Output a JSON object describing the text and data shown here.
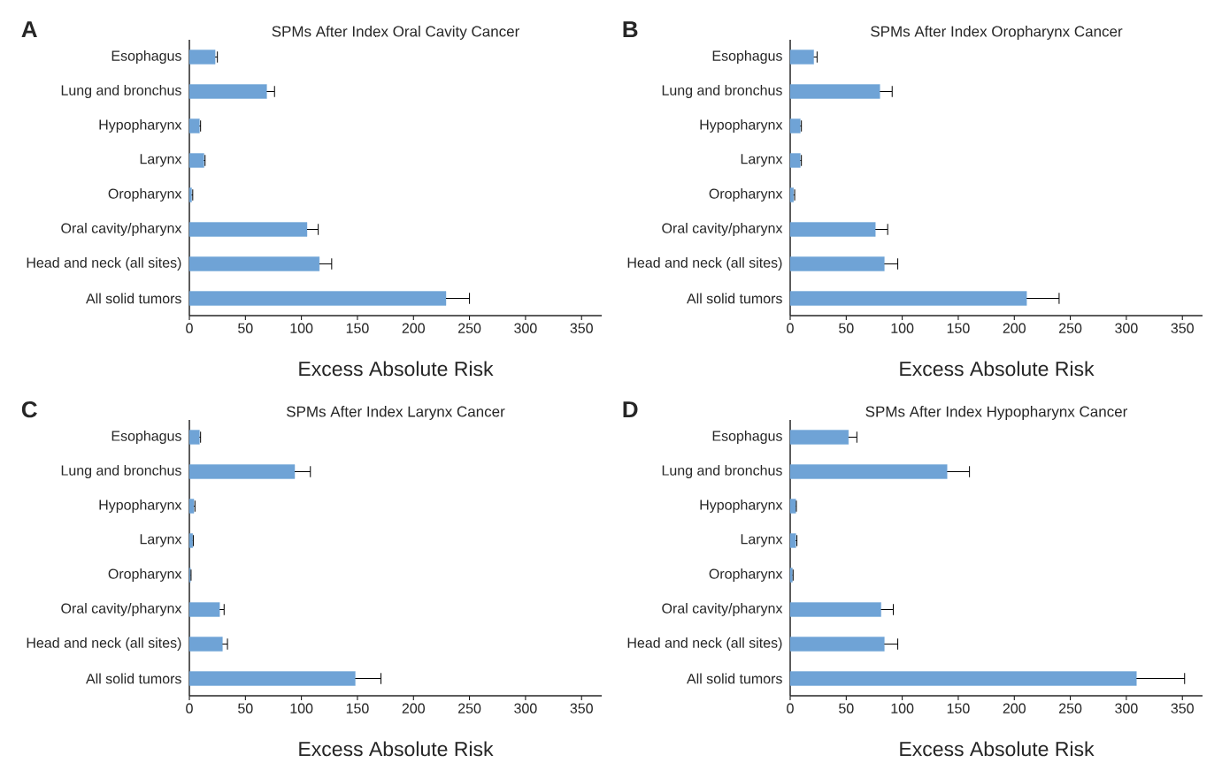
{
  "chart_data": [
    {
      "type": "bar",
      "orientation": "horizontal",
      "title": "SPMs After Index Oral Cavity Cancer",
      "xlabel": "Excess Absolute Risk",
      "annotations": [
        "A"
      ],
      "categories": [
        "Esophagus",
        "Lung and bronchus",
        "Hypopharynx",
        "Larynx",
        "Oropharynx",
        "Oral cavity/pharynx",
        "Head and neck (all sites)",
        "All solid tumors"
      ],
      "values": [
        23,
        69,
        9,
        13,
        2,
        105,
        116,
        229
      ],
      "errors": [
        [
          23,
          25
        ],
        [
          69,
          76
        ],
        [
          9,
          10
        ],
        [
          13,
          14
        ],
        [
          2,
          3
        ],
        [
          105,
          115
        ],
        [
          116,
          127
        ],
        [
          229,
          250
        ]
      ],
      "color": "#6fa3d6",
      "xlim": [
        0,
        368
      ],
      "xticks": [
        0,
        50,
        100,
        150,
        200,
        250,
        300,
        350
      ]
    },
    {
      "type": "bar",
      "orientation": "horizontal",
      "title": "SPMs After Index Oropharynx Cancer",
      "xlabel": "Excess Absolute Risk",
      "annotations": [
        "B"
      ],
      "categories": [
        "Esophagus",
        "Lung and bronchus",
        "Hypopharynx",
        "Larynx",
        "Oropharynx",
        "Oral cavity/pharynx",
        "Head and neck (all sites)",
        "All solid tumors"
      ],
      "values": [
        21,
        80,
        9,
        9,
        3,
        76,
        84,
        211
      ],
      "errors": [
        [
          21,
          24
        ],
        [
          80,
          91
        ],
        [
          9,
          10
        ],
        [
          9,
          10
        ],
        [
          3,
          4
        ],
        [
          76,
          87
        ],
        [
          84,
          96
        ],
        [
          211,
          240
        ]
      ],
      "color": "#6fa3d6",
      "xlim": [
        0,
        368
      ],
      "xticks": [
        0,
        50,
        100,
        150,
        200,
        250,
        300,
        350
      ]
    },
    {
      "type": "bar",
      "orientation": "horizontal",
      "title": "SPMs After Index Larynx Cancer",
      "xlabel": "Excess Absolute Risk",
      "annotations": [
        "C"
      ],
      "categories": [
        "Esophagus",
        "Lung and bronchus",
        "Hypopharynx",
        "Larynx",
        "Oropharynx",
        "Oral cavity/pharynx",
        "Head and neck (all sites)",
        "All solid tumors"
      ],
      "values": [
        9,
        94,
        4,
        3,
        1,
        27,
        29.5,
        148
      ],
      "errors": [
        [
          9,
          10
        ],
        [
          94,
          108
        ],
        [
          4,
          5
        ],
        [
          3,
          3.5
        ],
        [
          1,
          1.5
        ],
        [
          27,
          31
        ],
        [
          29.5,
          34
        ],
        [
          148,
          171
        ]
      ],
      "color": "#6fa3d6",
      "xlim": [
        0,
        368
      ],
      "xticks": [
        0,
        50,
        100,
        150,
        200,
        250,
        300,
        350
      ]
    },
    {
      "type": "bar",
      "orientation": "horizontal",
      "title": "SPMs After Index Hypopharynx Cancer",
      "xlabel": "Excess Absolute Risk",
      "annotations": [
        "D"
      ],
      "categories": [
        "Esophagus",
        "Lung and bronchus",
        "Hypopharynx",
        "Larynx",
        "Oropharynx",
        "Oral cavity/pharynx",
        "Head and neck (all sites)",
        "All solid tumors"
      ],
      "values": [
        52,
        140,
        5,
        5,
        2,
        81,
        84,
        309
      ],
      "errors": [
        [
          52,
          59.5
        ],
        [
          140,
          160
        ],
        [
          5,
          5.5
        ],
        [
          5,
          6
        ],
        [
          2,
          2.6
        ],
        [
          81,
          92
        ],
        [
          84,
          96
        ],
        [
          309,
          352
        ]
      ],
      "color": "#6fa3d6",
      "xlim": [
        0,
        368
      ],
      "xticks": [
        0,
        50,
        100,
        150,
        200,
        250,
        300,
        350
      ]
    }
  ]
}
